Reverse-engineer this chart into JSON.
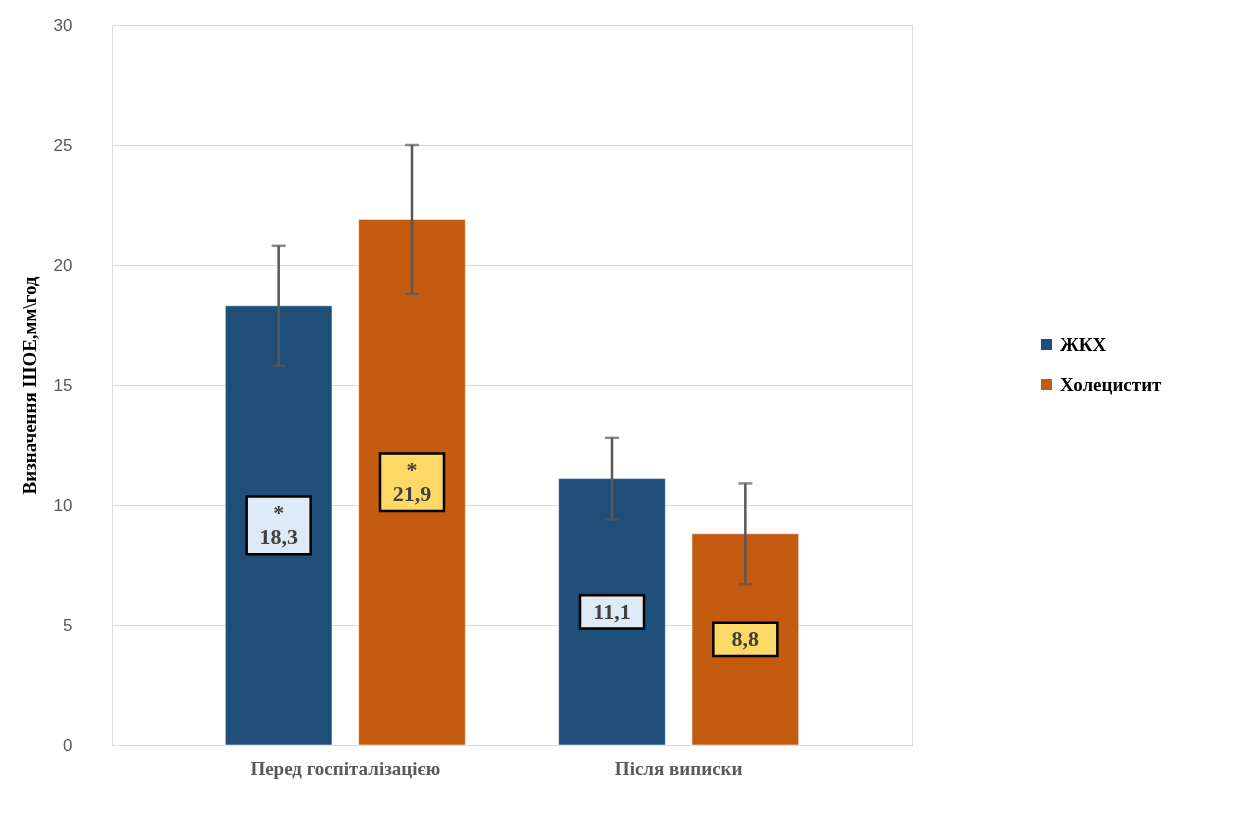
{
  "chart_data": {
    "type": "bar",
    "ylabel": "Визначення ШОЕ,мм\\год",
    "categories": [
      "Перед госпіталізацією",
      "Після виписки"
    ],
    "series": [
      {
        "name": "ЖКХ",
        "color": "#1f4e79",
        "values": [
          18.3,
          11.1
        ],
        "errors": [
          2.5,
          1.7
        ],
        "value_labels": [
          "*\n18,3",
          "11,1"
        ]
      },
      {
        "name": "Холецистит",
        "color": "#c55a11",
        "values": [
          21.9,
          8.8
        ],
        "errors": [
          3.1,
          2.1
        ],
        "value_labels": [
          "*\n21,9",
          "8,8"
        ]
      }
    ],
    "ylim": [
      0,
      30
    ],
    "yticks": [
      0,
      5,
      10,
      15,
      20,
      25,
      30
    ],
    "grid": "y",
    "legend": "right"
  }
}
